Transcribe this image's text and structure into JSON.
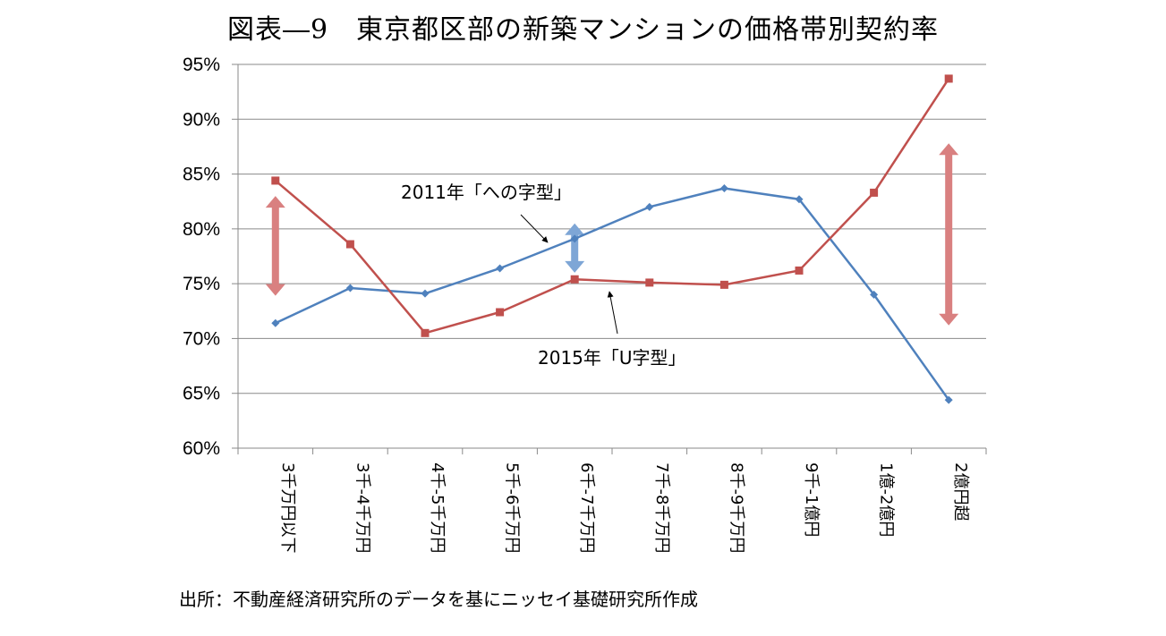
{
  "chart_data": {
    "type": "line",
    "title": "図表―9　東京都区部の新築マンションの価格帯別契約率",
    "categories": [
      "3千万円以下",
      "3千-4千万円",
      "4千-5千万円",
      "5千-6千万円",
      "6千-7千万円",
      "7千-8千万円",
      "8千-9千万円",
      "9千-1億円",
      "1億-2億円",
      "2億円超"
    ],
    "series": [
      {
        "key": "s2011",
        "color": "#4F81BD",
        "marker": "diamond",
        "values": [
          71.4,
          74.6,
          74.1,
          76.4,
          79.1,
          82.0,
          83.7,
          82.7,
          74.0,
          64.4
        ]
      },
      {
        "key": "s2015",
        "color": "#C0504D",
        "marker": "square",
        "values": [
          84.4,
          78.6,
          70.5,
          72.4,
          75.4,
          75.1,
          74.9,
          76.2,
          83.3,
          93.7
        ]
      }
    ],
    "ylim": [
      60,
      95
    ],
    "yticks": [
      "95%",
      "90%",
      "85%",
      "80%",
      "75%",
      "70%",
      "65%",
      "60%"
    ],
    "ytick_values": [
      95,
      90,
      85,
      80,
      75,
      70,
      65,
      60
    ],
    "grid": true,
    "annotations": [
      {
        "text": "2011年「への字型」",
        "series": "s2011"
      },
      {
        "text": "2015年「U字型」",
        "series": "s2015"
      }
    ],
    "gap_arrows": [
      {
        "category": "3千万円以下",
        "from": 73.9,
        "to": 83.0,
        "color": "#D98080"
      },
      {
        "category": "6千-7千万円",
        "from": 76.0,
        "to": 80.5,
        "color": "#7EA6D6"
      },
      {
        "category": "2億円超",
        "from": 71.2,
        "to": 87.8,
        "color": "#D98080"
      }
    ]
  },
  "source_note": "出所：不動産経済研究所のデータを基にニッセイ基礎研究所作成"
}
